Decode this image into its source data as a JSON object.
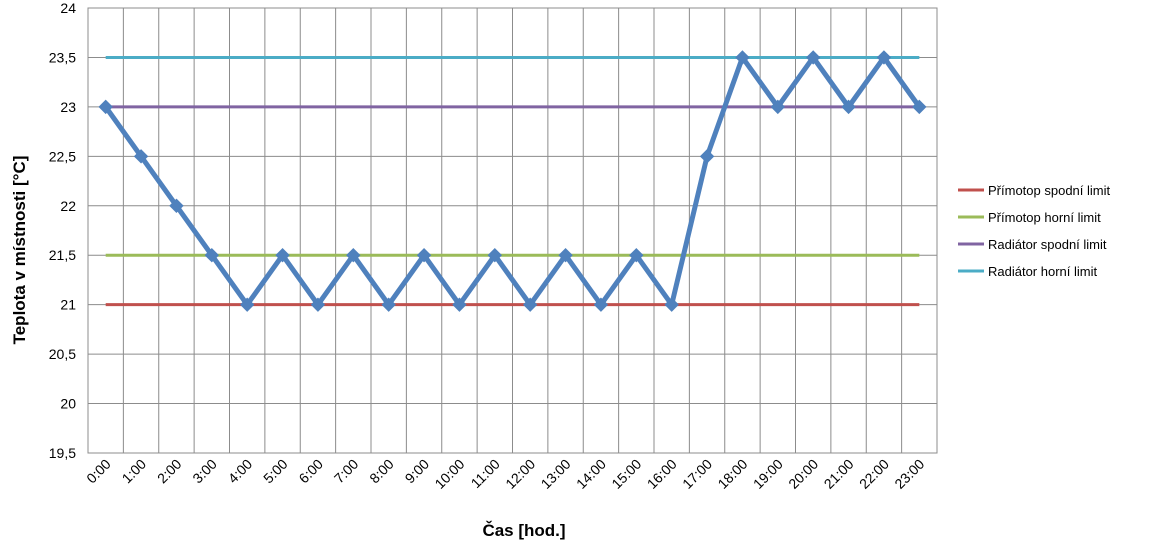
{
  "chart_data": {
    "type": "line",
    "title": "",
    "xlabel": "Čas [hod.]",
    "ylabel": "Teplota v místnosti  [°C]",
    "ylim": [
      19.5,
      24
    ],
    "ytick_labels": [
      "19,5",
      "20",
      "20,5",
      "21",
      "21,5",
      "22",
      "22,5",
      "23",
      "23,5",
      "24"
    ],
    "yticks": [
      19.5,
      20,
      20.5,
      21,
      21.5,
      22,
      22.5,
      23,
      23.5,
      24
    ],
    "categories": [
      "0:00",
      "1:00",
      "2:00",
      "3:00",
      "4:00",
      "5:00",
      "6:00",
      "7:00",
      "8:00",
      "9:00",
      "10:00",
      "11:00",
      "12:00",
      "13:00",
      "14:00",
      "15:00",
      "16:00",
      "17:00",
      "18:00",
      "19:00",
      "20:00",
      "21:00",
      "22:00",
      "23:00"
    ],
    "grid": true,
    "legend_position": "right",
    "series": [
      {
        "name": "",
        "color": "#4f81bd",
        "marker": "diamond",
        "values": [
          23,
          22.5,
          22,
          21.5,
          21,
          21.5,
          21,
          21.5,
          21,
          21.5,
          21,
          21.5,
          21,
          21.5,
          21,
          21.5,
          21,
          22.5,
          23.5,
          23,
          23.5,
          23,
          23.5,
          23
        ]
      },
      {
        "name": "Přímotop spodní  limit",
        "color": "#c0504d",
        "values": [
          21,
          21,
          21,
          21,
          21,
          21,
          21,
          21,
          21,
          21,
          21,
          21,
          21,
          21,
          21,
          21,
          21,
          21,
          21,
          21,
          21,
          21,
          21,
          21
        ]
      },
      {
        "name": "Přímotop horní  limit",
        "color": "#9bbb59",
        "values": [
          21.5,
          21.5,
          21.5,
          21.5,
          21.5,
          21.5,
          21.5,
          21.5,
          21.5,
          21.5,
          21.5,
          21.5,
          21.5,
          21.5,
          21.5,
          21.5,
          21.5,
          21.5,
          21.5,
          21.5,
          21.5,
          21.5,
          21.5,
          21.5
        ]
      },
      {
        "name": "Radiátor spodní limit",
        "color": "#8064a2",
        "values": [
          23,
          23,
          23,
          23,
          23,
          23,
          23,
          23,
          23,
          23,
          23,
          23,
          23,
          23,
          23,
          23,
          23,
          23,
          23,
          23,
          23,
          23,
          23,
          23
        ]
      },
      {
        "name": "Radiátor horní limit",
        "color": "#4bacc6",
        "values": [
          23.5,
          23.5,
          23.5,
          23.5,
          23.5,
          23.5,
          23.5,
          23.5,
          23.5,
          23.5,
          23.5,
          23.5,
          23.5,
          23.5,
          23.5,
          23.5,
          23.5,
          23.5,
          23.5,
          23.5,
          23.5,
          23.5,
          23.5,
          23.5
        ]
      }
    ]
  }
}
